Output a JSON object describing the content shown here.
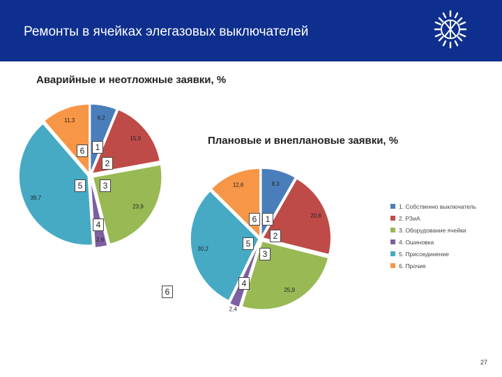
{
  "header": {
    "title": "Ремонты в ячейках элегазовых выключателей",
    "bg_color": "#0e2f8e"
  },
  "logo": {
    "icon": "power-grid-logo-icon"
  },
  "page_number": "27",
  "colors": [
    "#4a7ebb",
    "#be4b48",
    "#98b954",
    "#7d60a0",
    "#46aac5",
    "#f79646"
  ],
  "chart_data": [
    {
      "type": "pie",
      "title": "Аварийные и  неотложные заявки, %",
      "categories": [
        "1. Собственно выключатель",
        "2. РЗиА",
        "3. Оборудование ячейки",
        "4. Ошиновка",
        "5. Присоединение",
        "6. Прочие"
      ],
      "values": [
        6.2,
        15.9,
        23.9,
        2.9,
        39.7,
        11.3
      ],
      "labels": [
        "6,2",
        "15,9",
        "23,9",
        "2,9",
        "39,7",
        "11,3"
      ],
      "callouts": [
        "1",
        "2",
        "3",
        "4",
        "5",
        "6"
      ]
    },
    {
      "type": "pie",
      "title": "Плановые и внеплановые заявки, %",
      "categories": [
        "1. Собственно выключатель",
        "2. РЗиА",
        "3. Оборудование ячейки",
        "4. Ошиновка",
        "5. Присоединение",
        "6. Прочие"
      ],
      "values": [
        8.3,
        20.6,
        25.9,
        2.4,
        30.2,
        12.6
      ],
      "labels": [
        "8,3",
        "20,6",
        "25,9",
        "2,4",
        "30,2",
        "12,6"
      ],
      "callouts": [
        "1",
        "2",
        "3",
        "4",
        "5",
        "6"
      ],
      "extra_callout": "6",
      "legend": [
        "1. Собственно выключатель",
        "2. РЗиА",
        "3. Оборудование ячейки",
        "4. Ошиновка",
        "5. Присоединение",
        "6. Прочие"
      ],
      "legend_position": "right"
    }
  ]
}
